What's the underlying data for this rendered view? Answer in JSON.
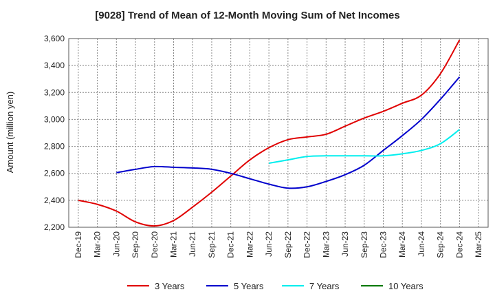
{
  "chart_data": {
    "type": "line",
    "title": "[9028]  Trend of Mean of 12-Month Moving Sum of Net Incomes",
    "ylabel": "Amount (million yen)",
    "xlabel": "",
    "ylim": [
      2200,
      3600
    ],
    "yticks": [
      2200,
      2400,
      2600,
      2800,
      3000,
      3200,
      3400,
      3600
    ],
    "ytick_labels": [
      "2,200",
      "2,400",
      "2,600",
      "2,800",
      "3,000",
      "3,200",
      "3,400",
      "3,600"
    ],
    "categories": [
      "Dec-19",
      "Mar-20",
      "Jun-20",
      "Sep-20",
      "Dec-20",
      "Mar-21",
      "Jun-21",
      "Sep-21",
      "Dec-21",
      "Mar-22",
      "Jun-22",
      "Sep-22",
      "Dec-22",
      "Mar-23",
      "Jun-23",
      "Sep-23",
      "Dec-23",
      "Mar-24",
      "Jun-24",
      "Sep-24",
      "Dec-24",
      "Mar-25"
    ],
    "grid": true,
    "legend_position": "bottom",
    "series": [
      {
        "name": "3 Years",
        "color": "#e00000",
        "values": [
          2400,
          2370,
          2320,
          2240,
          2210,
          2250,
          2350,
          2460,
          2580,
          2700,
          2790,
          2850,
          2870,
          2890,
          2950,
          3010,
          3060,
          3120,
          3180,
          3340,
          3590,
          null
        ]
      },
      {
        "name": "5 Years",
        "color": "#0000cc",
        "values": [
          null,
          null,
          2605,
          2630,
          2650,
          2645,
          2640,
          2630,
          2600,
          2560,
          2520,
          2490,
          2500,
          2540,
          2590,
          2660,
          2770,
          2880,
          3000,
          3150,
          3315,
          null
        ]
      },
      {
        "name": "7 Years",
        "color": "#00eeee",
        "values": [
          null,
          null,
          null,
          null,
          null,
          null,
          null,
          null,
          null,
          null,
          2675,
          2700,
          2725,
          2730,
          2730,
          2730,
          2730,
          2745,
          2770,
          2820,
          2925,
          null
        ]
      },
      {
        "name": "10 Years",
        "color": "#007700",
        "values": [
          null,
          null,
          null,
          null,
          null,
          null,
          null,
          null,
          null,
          null,
          null,
          null,
          null,
          null,
          null,
          null,
          null,
          null,
          null,
          null,
          null,
          null
        ]
      }
    ]
  }
}
